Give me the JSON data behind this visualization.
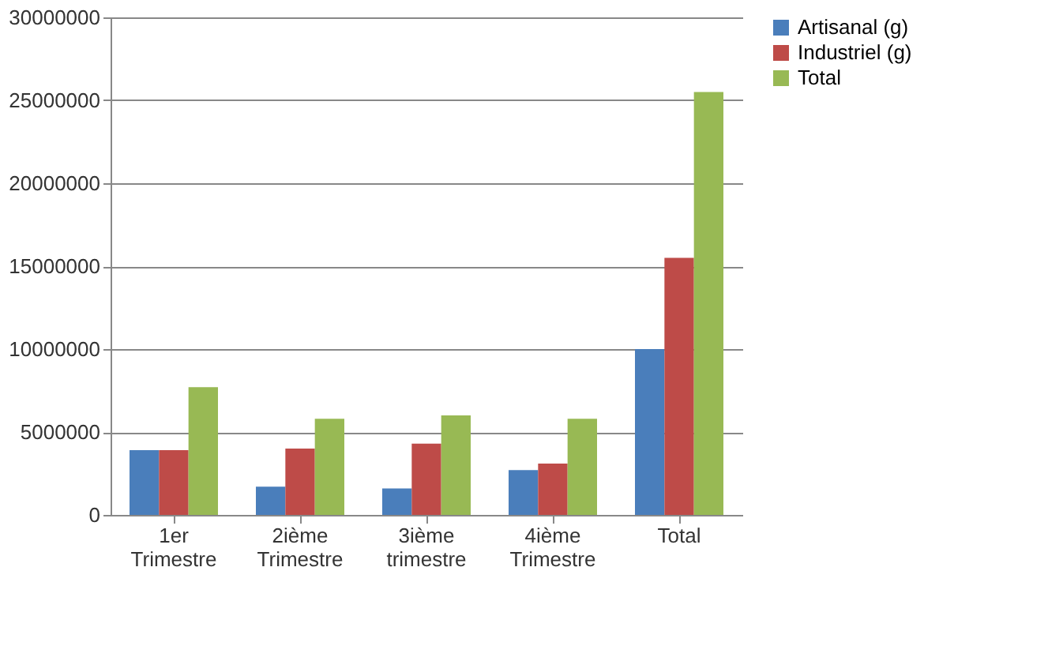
{
  "chart_data": {
    "type": "bar",
    "categories": [
      "1er Trimestre",
      "2ième Trimestre",
      "3ième trimestre",
      "4ième Trimestre",
      "Total"
    ],
    "series": [
      {
        "name": "Artisanal (g)",
        "color": "#4a7ebb",
        "values": [
          3900000,
          1700000,
          1600000,
          2700000,
          10000000
        ]
      },
      {
        "name": "Industriel (g)",
        "color": "#be4b48",
        "values": [
          3900000,
          4000000,
          4300000,
          3100000,
          15500000
        ]
      },
      {
        "name": "Total",
        "color": "#98b954",
        "values": [
          7700000,
          5800000,
          6000000,
          5800000,
          25500000
        ]
      }
    ],
    "ylim": [
      0,
      30000000
    ],
    "yticks": [
      0,
      5000000,
      10000000,
      15000000,
      20000000,
      25000000,
      30000000
    ],
    "grid": "y",
    "legend": "right"
  }
}
